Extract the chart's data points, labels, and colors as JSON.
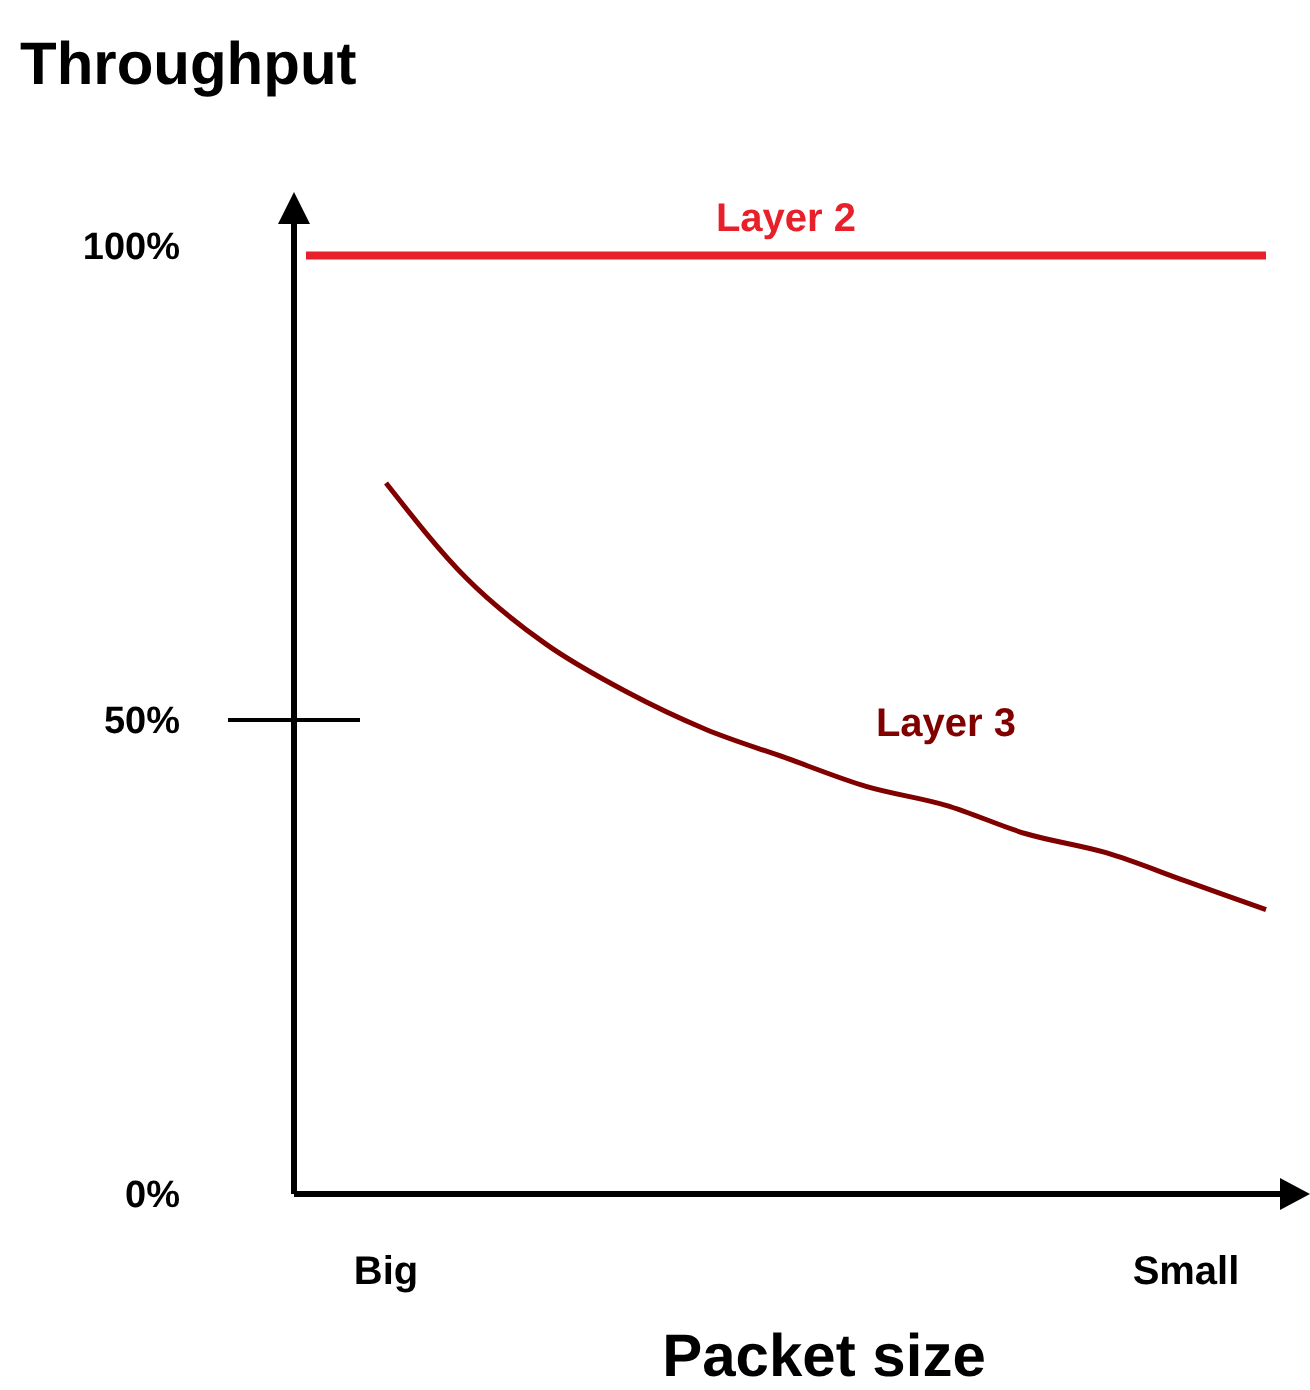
{
  "chart_data": {
    "type": "line",
    "title": "Throughput",
    "xlabel": "Packet size",
    "categories": [
      null,
      "Big",
      null,
      null,
      null,
      null,
      null,
      null,
      null,
      null,
      null,
      "Small",
      null
    ],
    "ylim": [
      0,
      100
    ],
    "yticks": [
      {
        "value": 0,
        "label": "0%"
      },
      {
        "value": 50,
        "label": "50%"
      },
      {
        "value": 100,
        "label": "100%"
      }
    ],
    "grid": false,
    "marker": "none",
    "line_style": "solid",
    "series": [
      {
        "name": "Layer 2",
        "color": "#e8202a",
        "values": [
          99,
          99,
          99,
          99,
          99,
          99,
          99,
          99,
          99,
          99,
          99,
          99,
          99
        ]
      },
      {
        "name": "Layer 3",
        "color": "#800000",
        "values": [
          null,
          75,
          65,
          58,
          53,
          49,
          46,
          43,
          41,
          38,
          36,
          33,
          30
        ]
      }
    ]
  }
}
